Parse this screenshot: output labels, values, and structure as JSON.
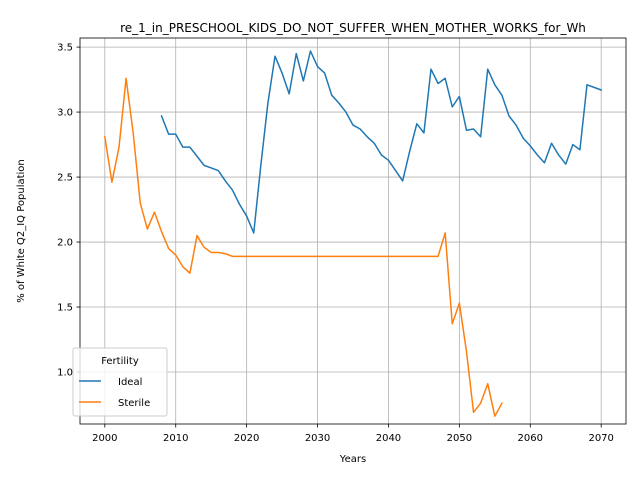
{
  "chart_data": {
    "type": "line",
    "title": "re_1_in_PRESCHOOL_KIDS_DO_NOT_SUFFER_WHEN_MOTHER_WORKS_for_Wh",
    "xlabel": "Years",
    "ylabel": "% of White Q2_IQ Population",
    "xlim": [
      1996.5,
      2073.5
    ],
    "ylim": [
      0.6,
      3.57
    ],
    "xticks": [
      2000,
      2010,
      2020,
      2030,
      2040,
      2050,
      2060,
      2070
    ],
    "yticks": [
      1.0,
      1.5,
      2.0,
      2.5,
      3.0,
      3.5
    ],
    "ytick_labels": [
      "1.0",
      "1.5",
      "2.0",
      "2.5",
      "3.0",
      "3.5"
    ],
    "grid": true,
    "legend": {
      "title": "Fertility",
      "placement": "lower-left"
    },
    "series": [
      {
        "name": "Ideal",
        "color": "#1f77b4",
        "x": [
          2008,
          2009,
          2010,
          2011,
          2012,
          2013,
          2014,
          2015,
          2016,
          2017,
          2018,
          2019,
          2020,
          2021,
          2022,
          2023,
          2024,
          2025,
          2026,
          2027,
          2028,
          2029,
          2030,
          2031,
          2032,
          2033,
          2034,
          2035,
          2036,
          2037,
          2038,
          2039,
          2040,
          2041,
          2042,
          2043,
          2044,
          2045,
          2046,
          2047,
          2048,
          2049,
          2050,
          2051,
          2052,
          2053,
          2054,
          2055,
          2056,
          2057,
          2058,
          2059,
          2060,
          2061,
          2062,
          2063,
          2064,
          2065,
          2066,
          2067,
          2068,
          2069,
          2070
        ],
        "y": [
          2.97,
          2.83,
          2.83,
          2.73,
          2.73,
          2.66,
          2.59,
          2.57,
          2.55,
          2.47,
          2.4,
          2.29,
          2.2,
          2.07,
          2.59,
          3.07,
          3.43,
          3.3,
          3.14,
          3.45,
          3.24,
          3.47,
          3.35,
          3.3,
          3.13,
          3.07,
          3.0,
          2.9,
          2.87,
          2.81,
          2.76,
          2.67,
          2.63,
          2.55,
          2.47,
          2.7,
          2.91,
          2.84,
          3.33,
          3.22,
          3.26,
          3.04,
          3.12,
          2.86,
          2.87,
          2.81,
          3.33,
          3.21,
          3.13,
          2.97,
          2.9,
          2.8,
          2.74,
          2.67,
          2.61,
          2.76,
          2.67,
          2.6,
          2.75,
          2.71,
          3.21,
          3.19,
          3.17
        ]
      },
      {
        "name": "Sterile",
        "color": "#ff7f0e",
        "x": [
          2000,
          2001,
          2002,
          2003,
          2004,
          2005,
          2006,
          2007,
          2008,
          2009,
          2010,
          2011,
          2012,
          2013,
          2014,
          2015,
          2016,
          2017,
          2018,
          2019,
          2020,
          2021,
          2022,
          2023,
          2024,
          2025,
          2026,
          2027,
          2028,
          2029,
          2030,
          2031,
          2032,
          2033,
          2034,
          2035,
          2036,
          2037,
          2038,
          2039,
          2040,
          2041,
          2042,
          2043,
          2044,
          2045,
          2046,
          2047,
          2048,
          2049,
          2050,
          2051,
          2052,
          2053,
          2054,
          2055,
          2056
        ],
        "y": [
          2.81,
          2.46,
          2.73,
          3.26,
          2.84,
          2.3,
          2.1,
          2.23,
          2.08,
          1.95,
          1.9,
          1.81,
          1.76,
          2.05,
          1.96,
          1.92,
          1.92,
          1.91,
          1.89,
          1.89,
          1.89,
          1.89,
          1.89,
          1.89,
          1.89,
          1.89,
          1.89,
          1.89,
          1.89,
          1.89,
          1.89,
          1.89,
          1.89,
          1.89,
          1.89,
          1.89,
          1.89,
          1.89,
          1.89,
          1.89,
          1.89,
          1.89,
          1.89,
          1.89,
          1.89,
          1.89,
          1.89,
          1.89,
          2.07,
          1.37,
          1.53,
          1.16,
          0.69,
          0.76,
          0.91,
          0.66,
          0.76
        ]
      }
    ]
  }
}
